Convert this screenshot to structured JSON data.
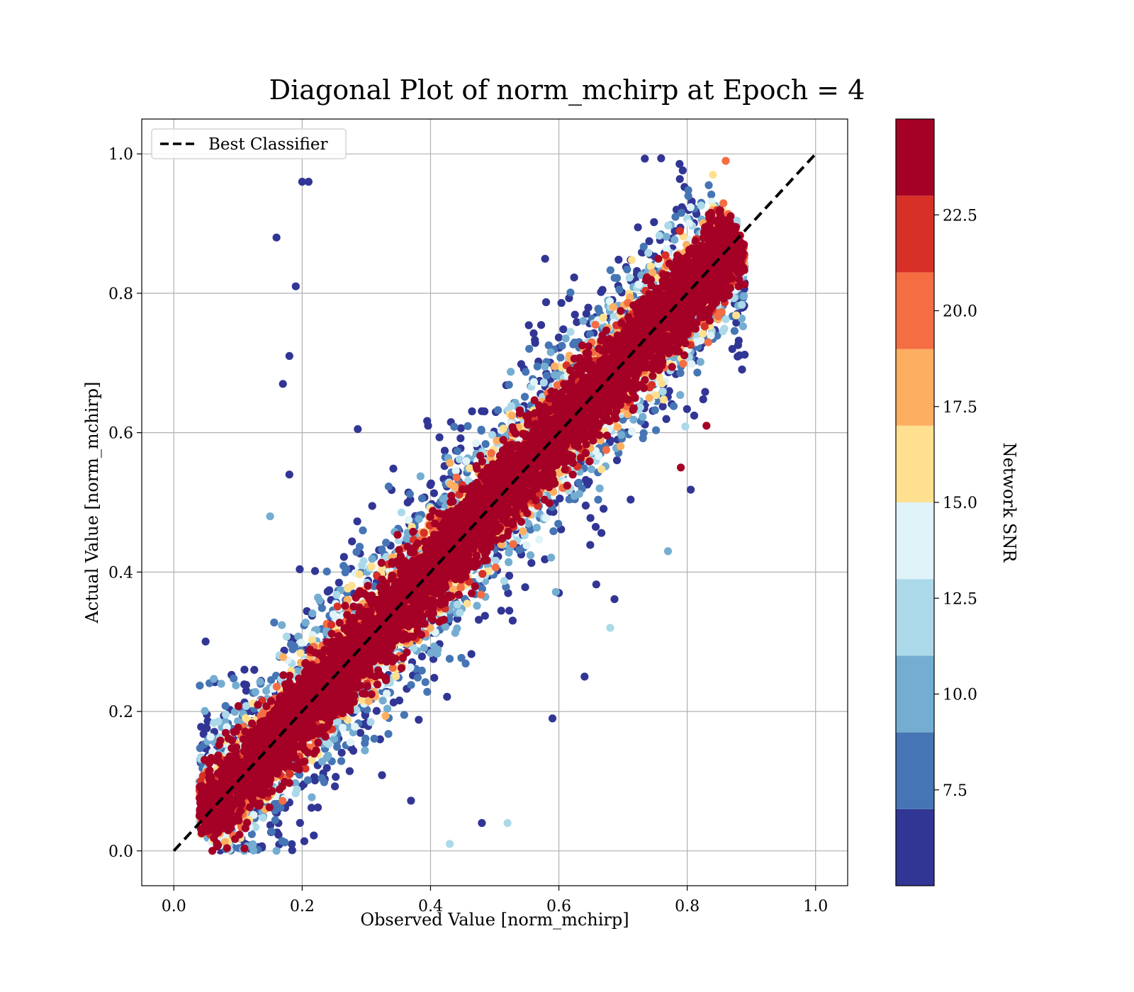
{
  "chart_data": {
    "type": "scatter",
    "title": "Diagonal Plot of norm_mchirp at Epoch = 4",
    "xlabel": "Observed Value [norm_mchirp]",
    "ylabel": "Actual Value [norm_mchirp]",
    "xlim": [
      -0.05,
      1.05
    ],
    "ylim": [
      -0.05,
      1.05
    ],
    "xticks": [
      0.0,
      0.2,
      0.4,
      0.6,
      0.8,
      1.0
    ],
    "yticks": [
      0.0,
      0.2,
      0.4,
      0.6,
      0.8,
      1.0
    ],
    "xtick_labels": [
      "0.0",
      "0.2",
      "0.4",
      "0.6",
      "0.8",
      "1.0"
    ],
    "ytick_labels": [
      "0.0",
      "0.2",
      "0.4",
      "0.6",
      "0.8",
      "1.0"
    ],
    "grid": true,
    "legend": {
      "position": "top-left",
      "entries": [
        {
          "label": "Best Classifier",
          "style": "dashed",
          "color": "#000000"
        }
      ]
    },
    "reference_line": {
      "name": "Best Classifier",
      "x": [
        0.0,
        1.0
      ],
      "y": [
        0.0,
        1.0
      ]
    },
    "colorbar": {
      "label": "Network SNR",
      "range": [
        5.0,
        25.0
      ],
      "ticks": [
        7.5,
        10.0,
        12.5,
        15.0,
        17.5,
        20.0,
        22.5
      ],
      "tick_labels": [
        "7.5",
        "10.0",
        "12.5",
        "15.0",
        "17.5",
        "20.0",
        "22.5"
      ],
      "bins": [
        {
          "min": 5.0,
          "max": 7.0,
          "color": "#313695"
        },
        {
          "min": 7.0,
          "max": 9.0,
          "color": "#4575b4"
        },
        {
          "min": 9.0,
          "max": 11.0,
          "color": "#74add1"
        },
        {
          "min": 11.0,
          "max": 13.0,
          "color": "#abd9e9"
        },
        {
          "min": 13.0,
          "max": 15.0,
          "color": "#e0f3f8"
        },
        {
          "min": 15.0,
          "max": 17.0,
          "color": "#fee090"
        },
        {
          "min": 17.0,
          "max": 19.0,
          "color": "#fdae61"
        },
        {
          "min": 19.0,
          "max": 21.0,
          "color": "#f46d43"
        },
        {
          "min": 21.0,
          "max": 23.0,
          "color": "#d73027"
        },
        {
          "min": 23.0,
          "max": 25.0,
          "color": "#a50026"
        }
      ]
    },
    "points_summary": {
      "description_of_distribution": "dense diagonal band around y=x; high-SNR points concentrated on the diagonal, low-SNR points scattered widely",
      "points": [
        {
          "x": 0.16,
          "y": 0.88,
          "snr": 6
        },
        {
          "x": 0.2,
          "y": 0.96,
          "snr": 6
        },
        {
          "x": 0.21,
          "y": 0.96,
          "snr": 6
        },
        {
          "x": 0.19,
          "y": 0.81,
          "snr": 6
        },
        {
          "x": 0.18,
          "y": 0.71,
          "snr": 6
        },
        {
          "x": 0.17,
          "y": 0.67,
          "snr": 6
        },
        {
          "x": 0.18,
          "y": 0.54,
          "snr": 6
        },
        {
          "x": 0.15,
          "y": 0.48,
          "snr": 9
        },
        {
          "x": 0.11,
          "y": 0.26,
          "snr": 6
        },
        {
          "x": 0.43,
          "y": 0.01,
          "snr": 12
        },
        {
          "x": 0.52,
          "y": 0.04,
          "snr": 11
        },
        {
          "x": 0.48,
          "y": 0.04,
          "snr": 6
        },
        {
          "x": 0.64,
          "y": 0.25,
          "snr": 6
        },
        {
          "x": 0.68,
          "y": 0.32,
          "snr": 11
        },
        {
          "x": 0.77,
          "y": 0.43,
          "snr": 9
        },
        {
          "x": 0.83,
          "y": 0.61,
          "snr": 24
        },
        {
          "x": 0.88,
          "y": 0.81,
          "snr": 24
        },
        {
          "x": 0.79,
          "y": 0.55,
          "snr": 24
        },
        {
          "x": 0.86,
          "y": 0.99,
          "snr": 19
        },
        {
          "x": 0.84,
          "y": 0.97,
          "snr": 16
        },
        {
          "x": 0.06,
          "y": 0.0,
          "snr": 24
        },
        {
          "x": 0.04,
          "y": 0.05,
          "snr": 24
        },
        {
          "x": 0.16,
          "y": 0.0,
          "snr": 9
        },
        {
          "x": 0.59,
          "y": 0.19,
          "snr": 6
        }
      ]
    }
  }
}
